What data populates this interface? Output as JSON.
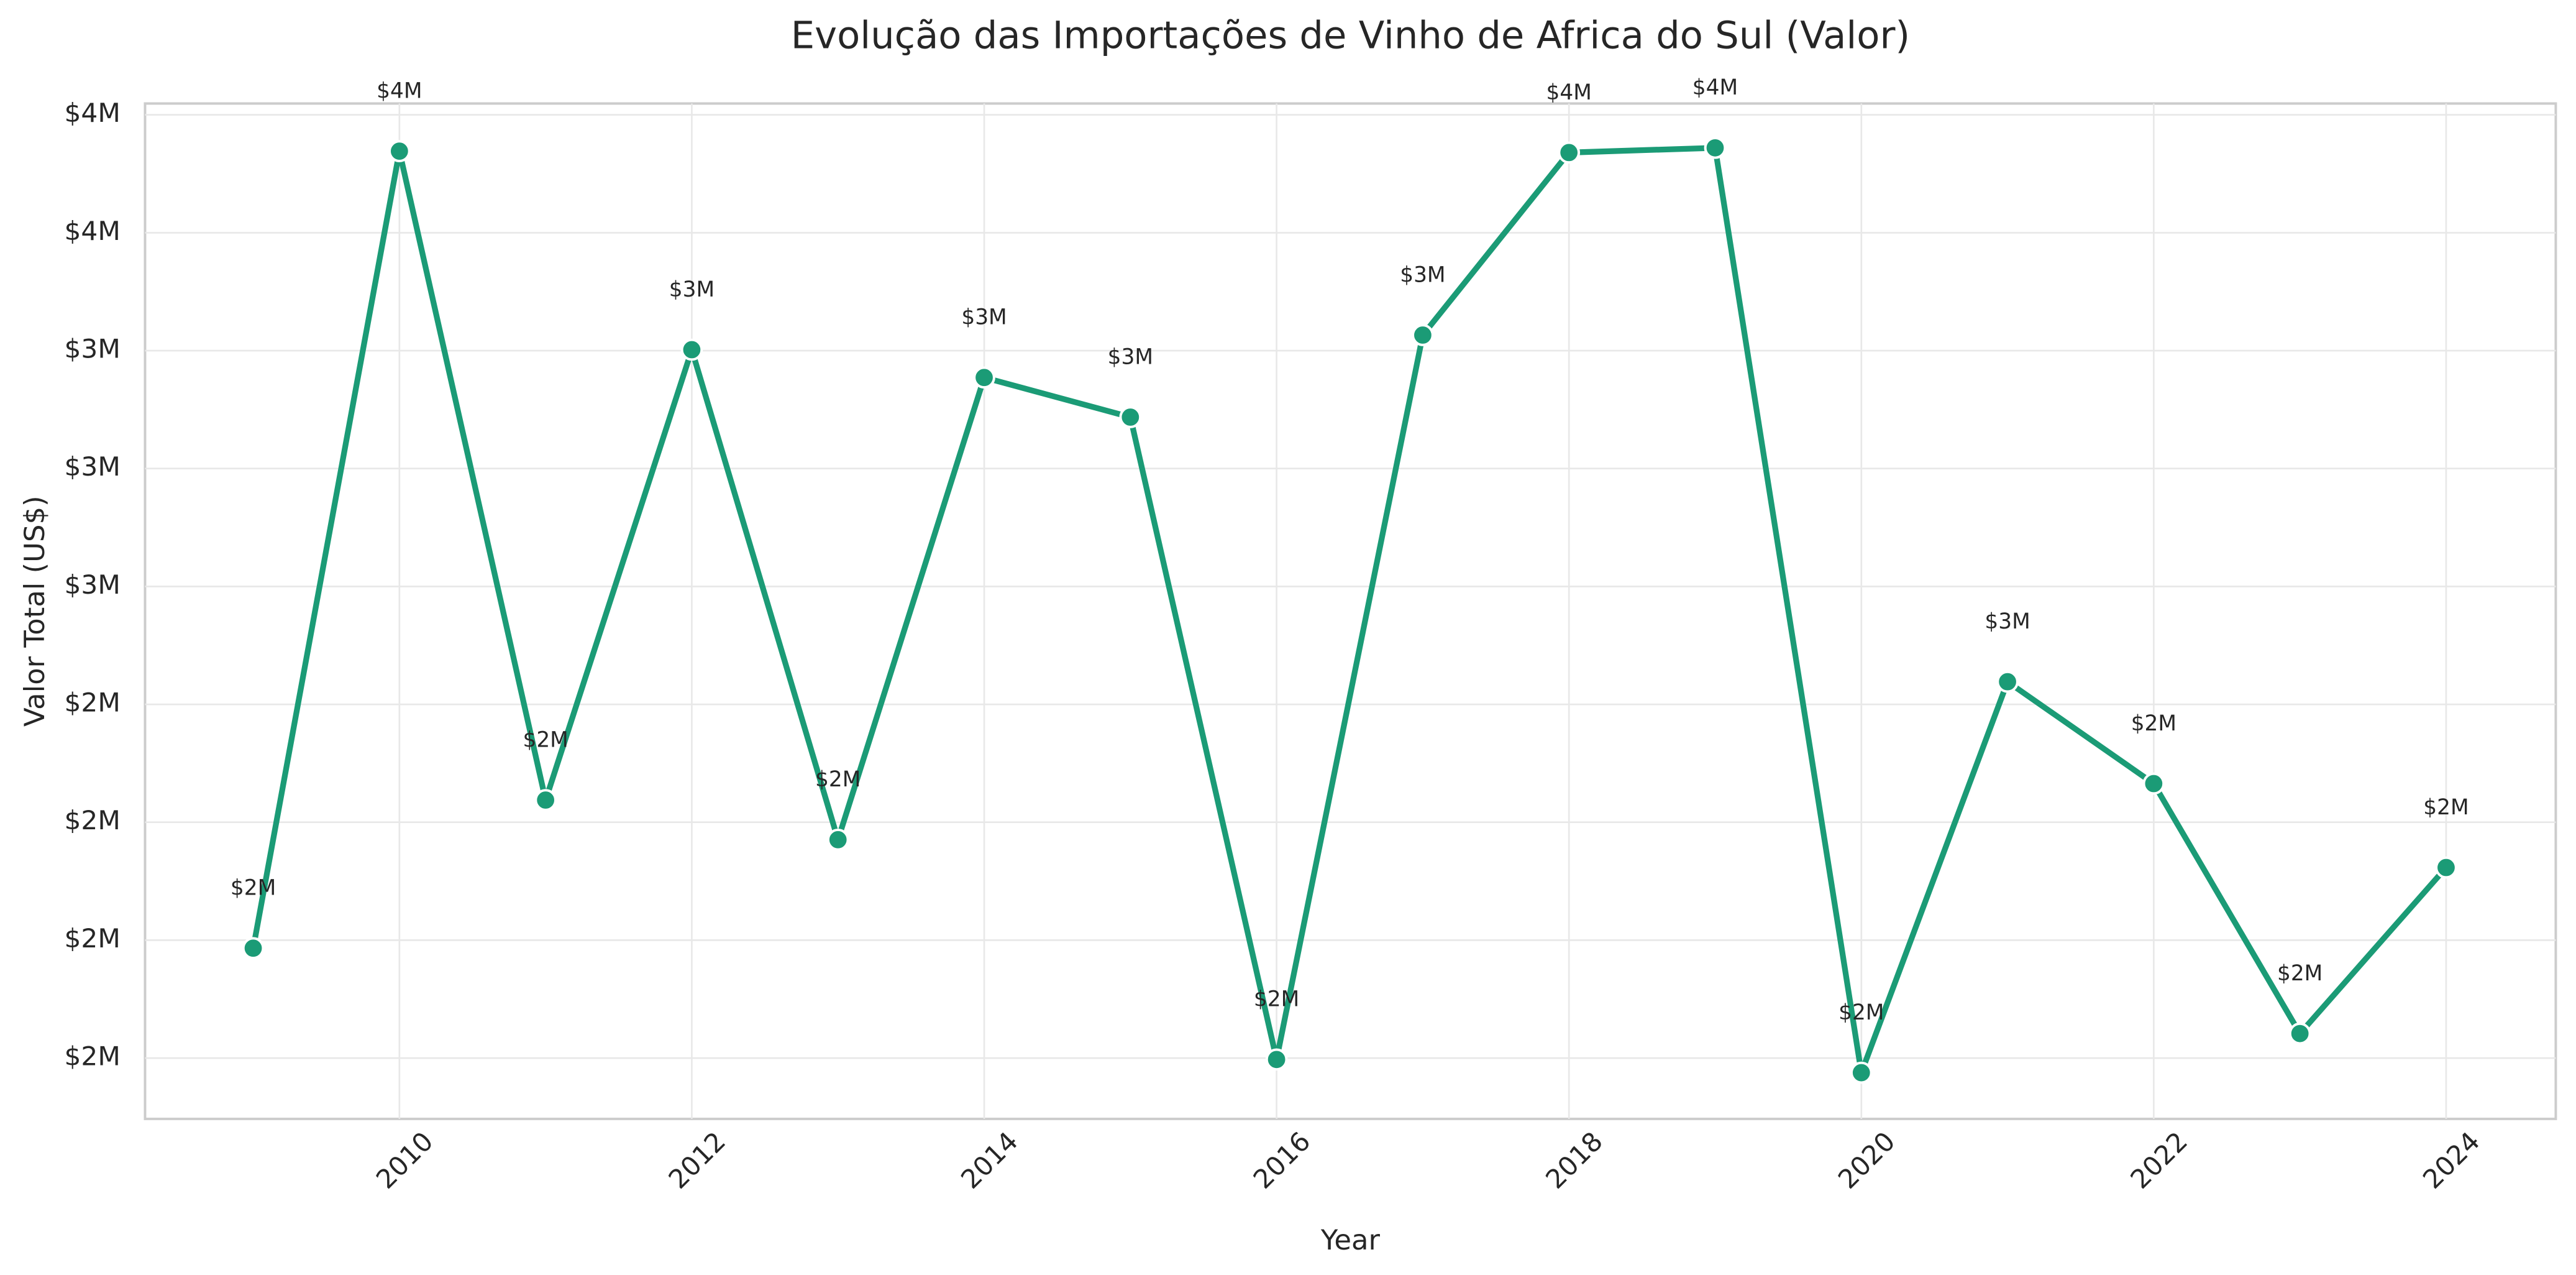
{
  "chart_data": {
    "type": "line",
    "title": "Evolução das Importações de Vinho de Africa do Sul (Valor)",
    "x_label": "Year",
    "y_label": "Valor Total (US$)",
    "x": [
      2009,
      2010,
      2011,
      2012,
      2013,
      2014,
      2015,
      2016,
      2017,
      2018,
      2019,
      2020,
      2021,
      2022,
      2023,
      2024
    ],
    "values": [
      1983000,
      3673000,
      2297000,
      3252000,
      2213000,
      3193000,
      3109000,
      1747000,
      3283000,
      3670000,
      3680000,
      1719000,
      2548000,
      2332000,
      1802000,
      2154000
    ],
    "value_labels": [
      "$2M",
      "$4M",
      "$2M",
      "$3M",
      "$2M",
      "$3M",
      "$3M",
      "$2M",
      "$3M",
      "$4M",
      "$4M",
      "$2M",
      "$3M",
      "$2M",
      "$2M",
      "$2M"
    ],
    "color": "#1b9b76",
    "xlim": [
      2008.26,
      2024.75
    ],
    "xticks": [
      2010,
      2012,
      2014,
      2016,
      2018,
      2020,
      2022,
      2024
    ],
    "ylim": [
      1621000,
      3774000
    ],
    "yticks": [
      {
        "value": 1750000,
        "label": "$2M"
      },
      {
        "value": 2000000,
        "label": "$2M"
      },
      {
        "value": 2250000,
        "label": "$2M"
      },
      {
        "value": 2500000,
        "label": "$2M"
      },
      {
        "value": 2750000,
        "label": "$3M"
      },
      {
        "value": 3000000,
        "label": "$3M"
      },
      {
        "value": 3250000,
        "label": "$3M"
      },
      {
        "value": 3500000,
        "label": "$4M"
      },
      {
        "value": 3750000,
        "label": "$4M"
      }
    ],
    "grid": true
  }
}
